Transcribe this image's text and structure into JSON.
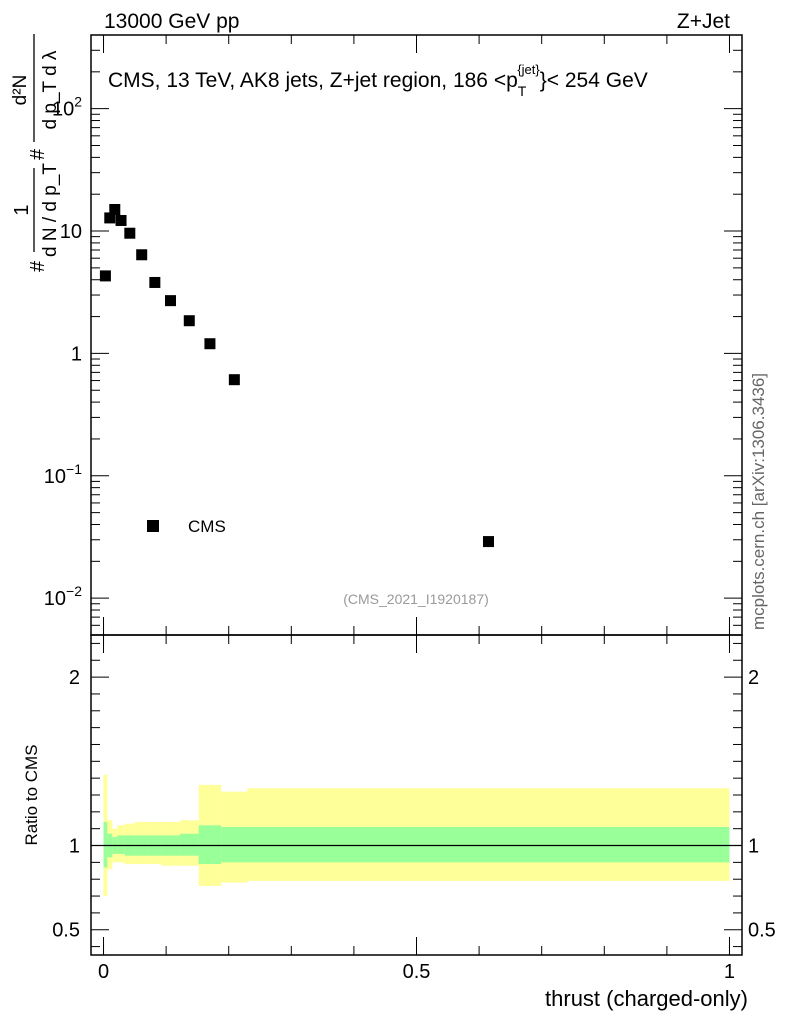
{
  "header": {
    "left": "13000 GeV pp",
    "right": "Z+Jet"
  },
  "side_label": "mcplots.cern.ch [arXiv:1306.3436]",
  "chart_data": [
    {
      "type": "scatter",
      "panel": "main",
      "title": "CMS, 13 TeV, AK8 jets, Z+jet region, 186 <p_T^{jet}< 254 GeV",
      "title_parts": {
        "before": "CMS, 13 TeV, AK8 jets, Z+jet region, 186 <p",
        "sub": "T",
        "sup": "{jet}",
        "after": "}< 254 GeV"
      },
      "ylabel": "1/(dN/dp_T) d^2N/(dp_T dλ)",
      "ylabel_parts": {
        "numerator_label": "d²N",
        "numerator_denominator": "d p_T d λ",
        "prefactor_denominator": "d N / d p_T",
        "one": "1"
      },
      "yscale": "log",
      "ylim": [
        0.005,
        400
      ],
      "xlim": [
        -0.02,
        1.02
      ],
      "y_ticks": [
        {
          "value": 0.01,
          "label": "10^{-2}",
          "base": "10",
          "exp": "−2"
        },
        {
          "value": 0.1,
          "label": "10^{-1}",
          "base": "10",
          "exp": "−1"
        },
        {
          "value": 1,
          "label": "1",
          "base": "1",
          "exp": ""
        },
        {
          "value": 10,
          "label": "10",
          "base": "10",
          "exp": ""
        },
        {
          "value": 100,
          "label": "10^{2}",
          "base": "10",
          "exp": "2"
        }
      ],
      "legend": {
        "entries": [
          "CMS"
        ],
        "placement": "lower-left"
      },
      "watermark": "(CMS_2021_I1920187)",
      "series": [
        {
          "name": "CMS",
          "marker": "square",
          "color": "#000000",
          "x": [
            0.003,
            0.01,
            0.018,
            0.028,
            0.042,
            0.061,
            0.082,
            0.107,
            0.137,
            0.17,
            0.209,
            0.615
          ],
          "y": [
            4.3,
            12.8,
            15.0,
            12.2,
            9.6,
            6.4,
            3.8,
            2.7,
            1.85,
            1.2,
            0.61,
            0.029
          ]
        }
      ]
    },
    {
      "type": "area",
      "panel": "ratio",
      "ylabel": "Ratio to CMS",
      "xlabel": "thrust (charged-only)",
      "xlim": [
        -0.02,
        1.02
      ],
      "ylim": [
        0.35,
        2.25
      ],
      "x_ticks": [
        {
          "value": 0,
          "label": "0"
        },
        {
          "value": 0.5,
          "label": "0.5"
        },
        {
          "value": 1,
          "label": "1"
        }
      ],
      "y_ticks": [
        {
          "value": 0.5,
          "label": "0.5"
        },
        {
          "value": 1,
          "label": "1"
        },
        {
          "value": 2,
          "label": "2"
        }
      ],
      "reference_line": 1.0,
      "band_colors": {
        "outer": "#ffff99",
        "inner": "#99ff99"
      },
      "bands": [
        {
          "x0": 0.0,
          "x1": 0.006,
          "inner": [
            0.87,
            1.14
          ],
          "outer": [
            0.7,
            1.42
          ]
        },
        {
          "x0": 0.006,
          "x1": 0.014,
          "inner": [
            0.93,
            1.07
          ],
          "outer": [
            0.86,
            1.15
          ]
        },
        {
          "x0": 0.014,
          "x1": 0.022,
          "inner": [
            0.95,
            1.05
          ],
          "outer": [
            0.9,
            1.1
          ]
        },
        {
          "x0": 0.022,
          "x1": 0.034,
          "inner": [
            0.95,
            1.06
          ],
          "outer": [
            0.9,
            1.12
          ]
        },
        {
          "x0": 0.034,
          "x1": 0.05,
          "inner": [
            0.94,
            1.06
          ],
          "outer": [
            0.89,
            1.13
          ]
        },
        {
          "x0": 0.05,
          "x1": 0.072,
          "inner": [
            0.94,
            1.06
          ],
          "outer": [
            0.89,
            1.14
          ]
        },
        {
          "x0": 0.072,
          "x1": 0.092,
          "inner": [
            0.94,
            1.06
          ],
          "outer": [
            0.89,
            1.14
          ]
        },
        {
          "x0": 0.092,
          "x1": 0.122,
          "inner": [
            0.94,
            1.06
          ],
          "outer": [
            0.88,
            1.14
          ]
        },
        {
          "x0": 0.122,
          "x1": 0.152,
          "inner": [
            0.94,
            1.07
          ],
          "outer": [
            0.88,
            1.15
          ]
        },
        {
          "x0": 0.152,
          "x1": 0.188,
          "inner": [
            0.89,
            1.12
          ],
          "outer": [
            0.76,
            1.36
          ]
        },
        {
          "x0": 0.188,
          "x1": 0.23,
          "inner": [
            0.9,
            1.11
          ],
          "outer": [
            0.78,
            1.32
          ]
        },
        {
          "x0": 0.23,
          "x1": 1.0,
          "inner": [
            0.9,
            1.11
          ],
          "outer": [
            0.79,
            1.34
          ]
        }
      ]
    }
  ]
}
